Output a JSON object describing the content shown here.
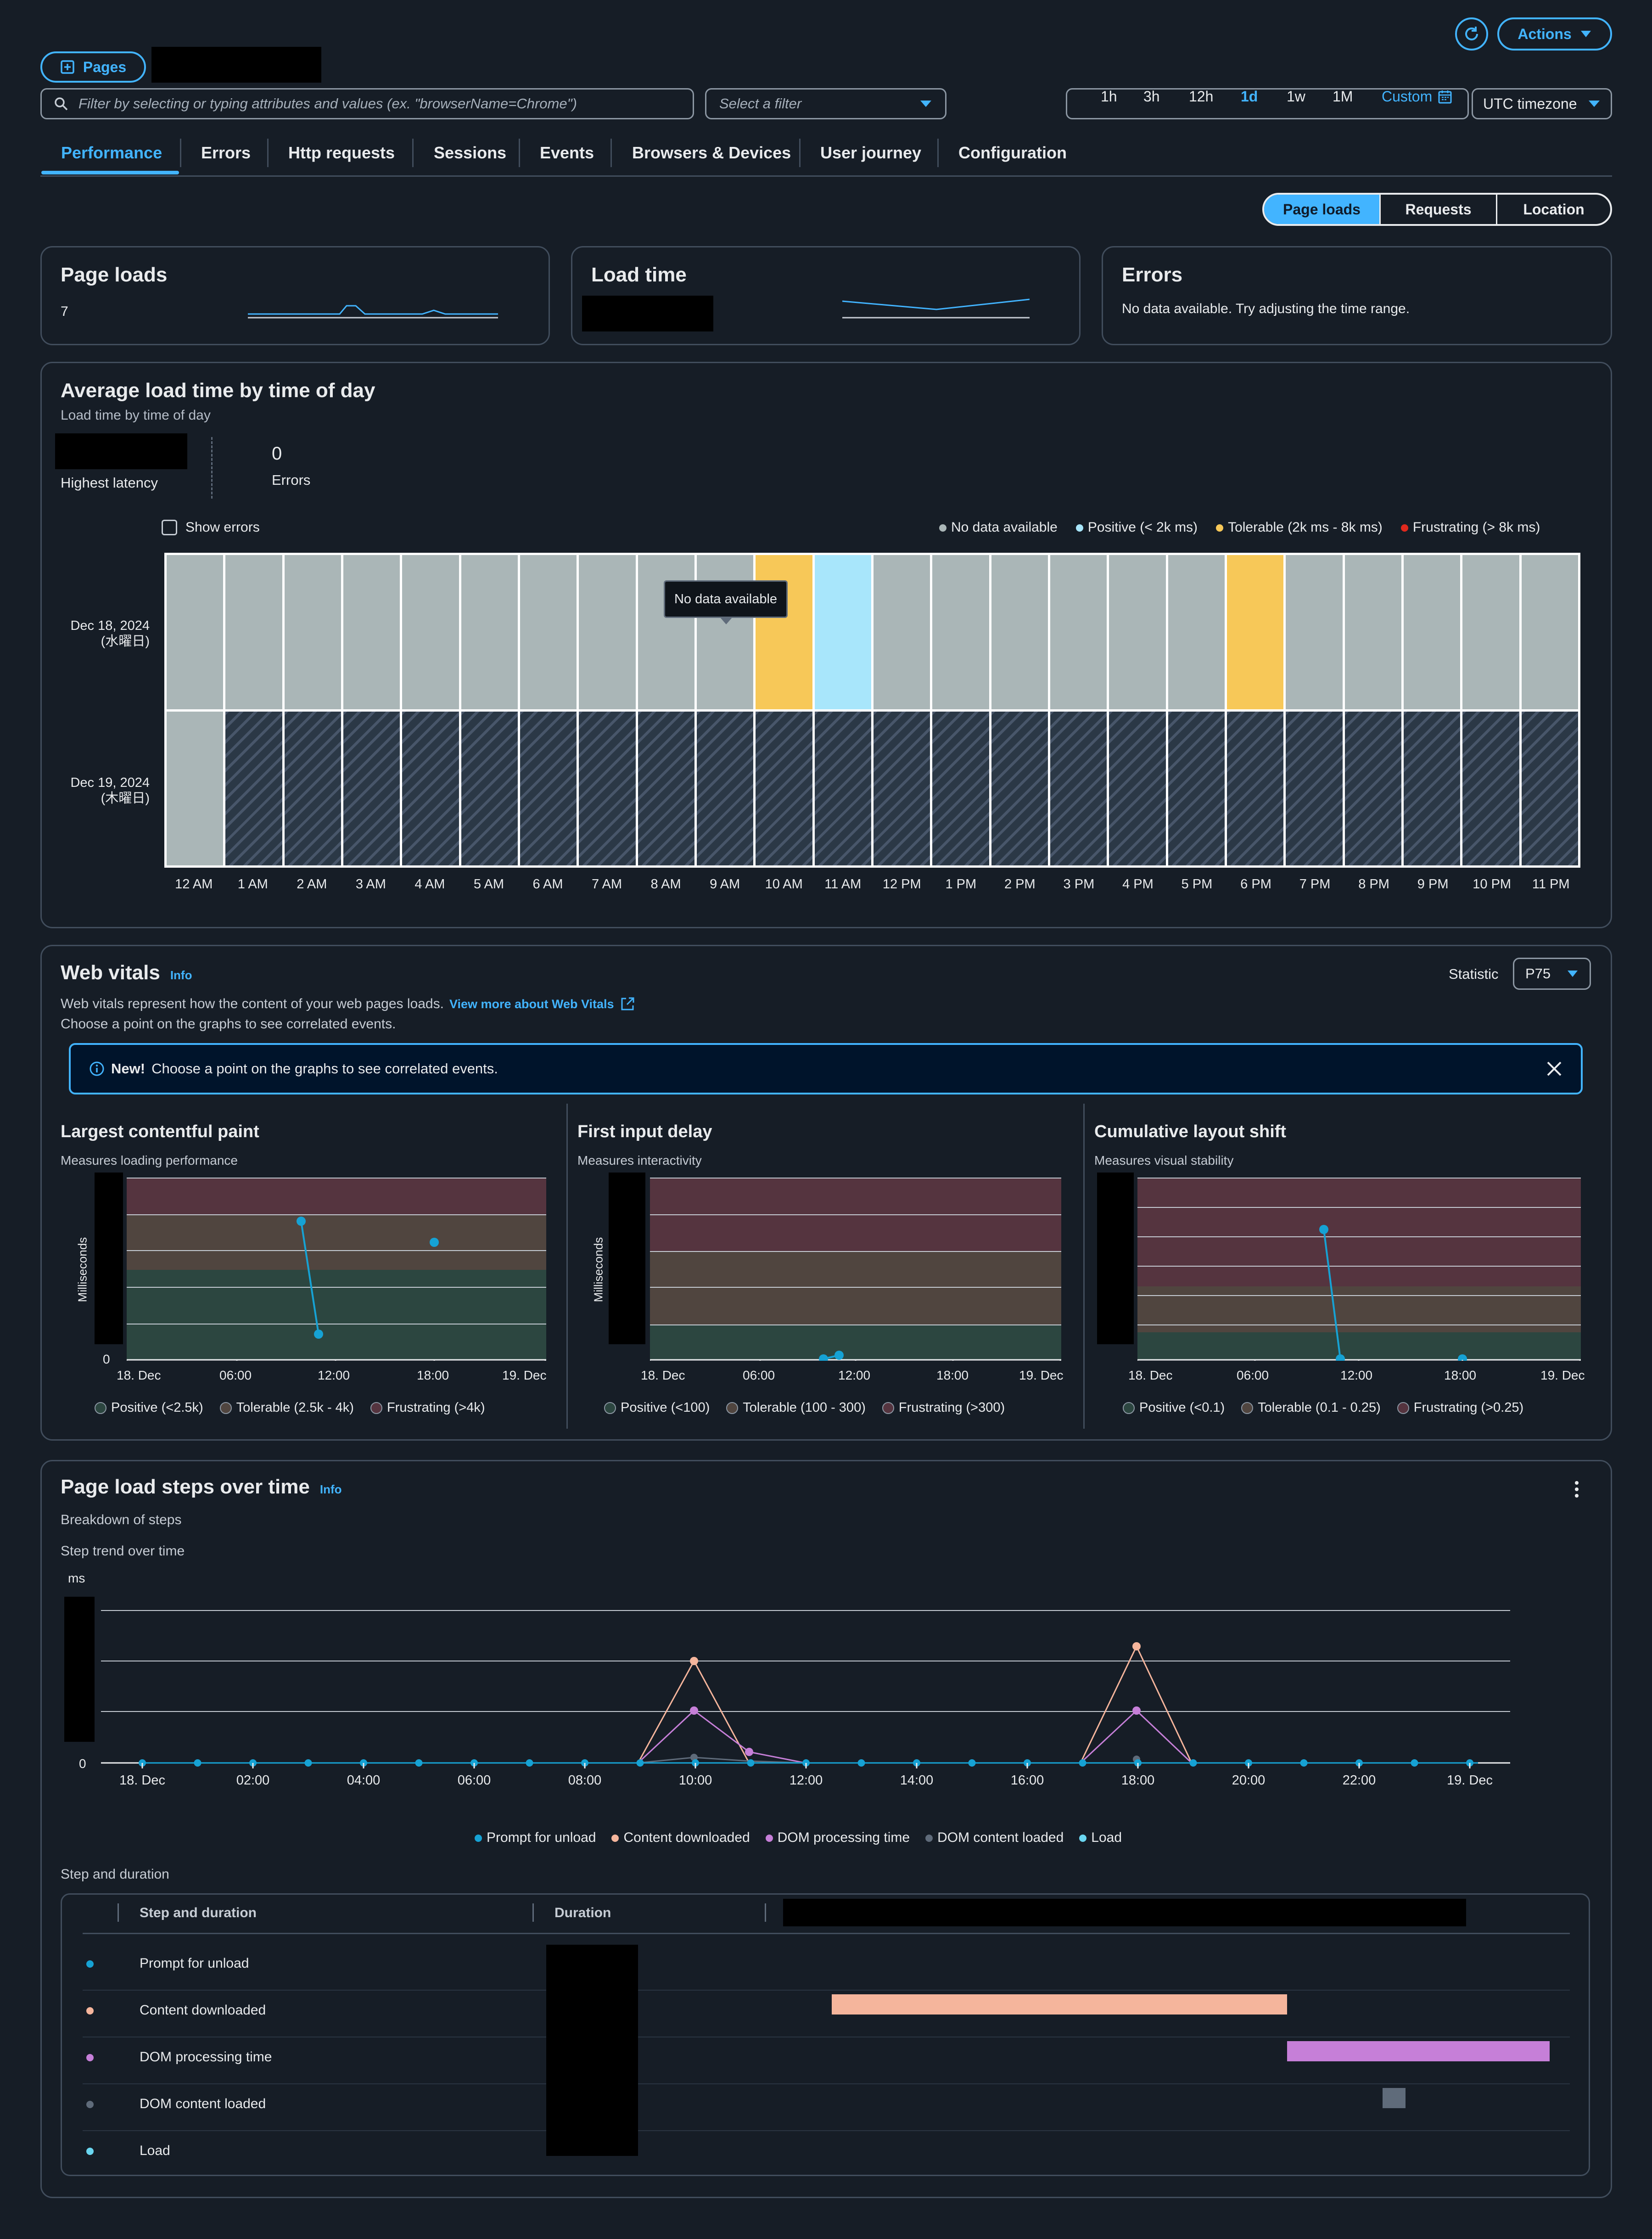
{
  "header": {
    "pages_label": "Pages",
    "actions_label": "Actions"
  },
  "filters": {
    "search_placeholder": "Filter by selecting or typing attributes and values (ex. \"browserName=Chrome\")",
    "select_placeholder": "Select a filter",
    "time_ranges": [
      "1h",
      "3h",
      "12h",
      "1d",
      "1w",
      "1M"
    ],
    "custom_label": "Custom",
    "timezone_label": "UTC timezone"
  },
  "tabs": [
    "Performance",
    "Errors",
    "Http requests",
    "Sessions",
    "Events",
    "Browsers & Devices",
    "User journey",
    "Configuration"
  ],
  "view_toggle": [
    "Page loads",
    "Requests",
    "Location"
  ],
  "summary": {
    "page_loads": {
      "title": "Page loads",
      "value": "7"
    },
    "load_time": {
      "title": "Load time"
    },
    "errors": {
      "title": "Errors",
      "message": "No data available. Try adjusting the time range."
    }
  },
  "heatmap": {
    "title": "Average load time by time of day",
    "subtitle": "Load time by time of day",
    "highest_latency_label": "Highest latency",
    "errors_value": "0",
    "errors_label": "Errors",
    "show_errors_label": "Show errors",
    "legend": [
      {
        "label": "No data available",
        "color": "#aab6b7"
      },
      {
        "label": "Positive (< 2k ms)",
        "color": "#a8e6fb"
      },
      {
        "label": "Tolerable (2k ms - 8k ms)",
        "color": "#f7c858"
      },
      {
        "label": "Frustrating (> 8k ms)",
        "color": "#e0291d"
      }
    ],
    "rows": [
      {
        "date": "Dec 18, 2024",
        "day": "(水曜日)"
      },
      {
        "date": "Dec 19, 2024",
        "day": "(木曜日)"
      }
    ],
    "hours": [
      "12 AM",
      "1 AM",
      "2 AM",
      "3 AM",
      "4 AM",
      "5 AM",
      "6 AM",
      "7 AM",
      "8 AM",
      "9 AM",
      "10 AM",
      "11 AM",
      "12 PM",
      "1 PM",
      "2 PM",
      "3 PM",
      "4 PM",
      "5 PM",
      "6 PM",
      "7 PM",
      "8 PM",
      "9 PM",
      "10 PM",
      "11 PM"
    ],
    "cells": [
      [
        "n",
        "n",
        "n",
        "n",
        "n",
        "n",
        "n",
        "n",
        "n",
        "n",
        "t",
        "p",
        "n",
        "n",
        "n",
        "n",
        "n",
        "n",
        "t",
        "n",
        "n",
        "n",
        "n",
        "n"
      ],
      [
        "n",
        "f",
        "f",
        "f",
        "f",
        "f",
        "f",
        "f",
        "f",
        "f",
        "f",
        "f",
        "f",
        "f",
        "f",
        "f",
        "f",
        "f",
        "f",
        "f",
        "f",
        "f",
        "f",
        "f"
      ]
    ],
    "tooltip": "No data available"
  },
  "web_vitals": {
    "title": "Web vitals",
    "info": "Info",
    "description": "Web vitals represent how the content of your web pages loads.",
    "link": "View more about Web Vitals",
    "hint": "Choose a point on the graphs to see correlated events.",
    "statistic_label": "Statistic",
    "statistic_value": "P75",
    "banner_new": "New!",
    "banner_text": "Choose a point on the graphs to see correlated events.",
    "x_ticks": [
      "18. Dec",
      "06:00",
      "12:00",
      "18:00",
      "19. Dec"
    ],
    "charts": [
      {
        "title": "Largest contentful paint",
        "subtitle": "Measures loading performance",
        "ylabel": "Milliseconds",
        "legend": [
          "Positive (<2.5k)",
          "Tolerable (2.5k - 4k)",
          "Frustrating (>4k)"
        ]
      },
      {
        "title": "First input delay",
        "subtitle": "Measures interactivity",
        "ylabel": "Milliseconds",
        "legend": [
          "Positive (<100)",
          "Tolerable (100 - 300)",
          "Frustrating (>300)"
        ]
      },
      {
        "title": "Cumulative layout shift",
        "subtitle": "Measures visual stability",
        "ylabel": "",
        "legend": [
          "Positive (<0.1)",
          "Tolerable (0.1 - 0.25)",
          "Frustrating (>0.25)"
        ]
      }
    ]
  },
  "page_load_steps": {
    "title": "Page load steps over time",
    "info": "Info",
    "subtitle": "Breakdown of steps",
    "trend_label": "Step trend over time",
    "y_unit": "ms",
    "y_zero": "0",
    "x_ticks": [
      "18. Dec",
      "02:00",
      "04:00",
      "06:00",
      "08:00",
      "10:00",
      "12:00",
      "14:00",
      "16:00",
      "18:00",
      "20:00",
      "22:00",
      "19. Dec"
    ],
    "legend": [
      {
        "label": "Prompt for unload",
        "color": "#16a2d4"
      },
      {
        "label": "Content downloaded",
        "color": "#f5b59c"
      },
      {
        "label": "DOM processing time",
        "color": "#c67fd8"
      },
      {
        "label": "DOM content loaded",
        "color": "#5f6b7a"
      },
      {
        "label": "Load",
        "color": "#6ad6f0"
      }
    ],
    "table_title": "Step and duration",
    "col_step": "Step and duration",
    "col_duration": "Duration",
    "steps": [
      {
        "label": "Prompt for unload",
        "color": "#16a2d4"
      },
      {
        "label": "Content downloaded",
        "color": "#f5b59c"
      },
      {
        "label": "DOM processing time",
        "color": "#c67fd8"
      },
      {
        "label": "DOM content loaded",
        "color": "#5f6b7a"
      },
      {
        "label": "Load",
        "color": "#6ad6f0"
      }
    ]
  }
}
